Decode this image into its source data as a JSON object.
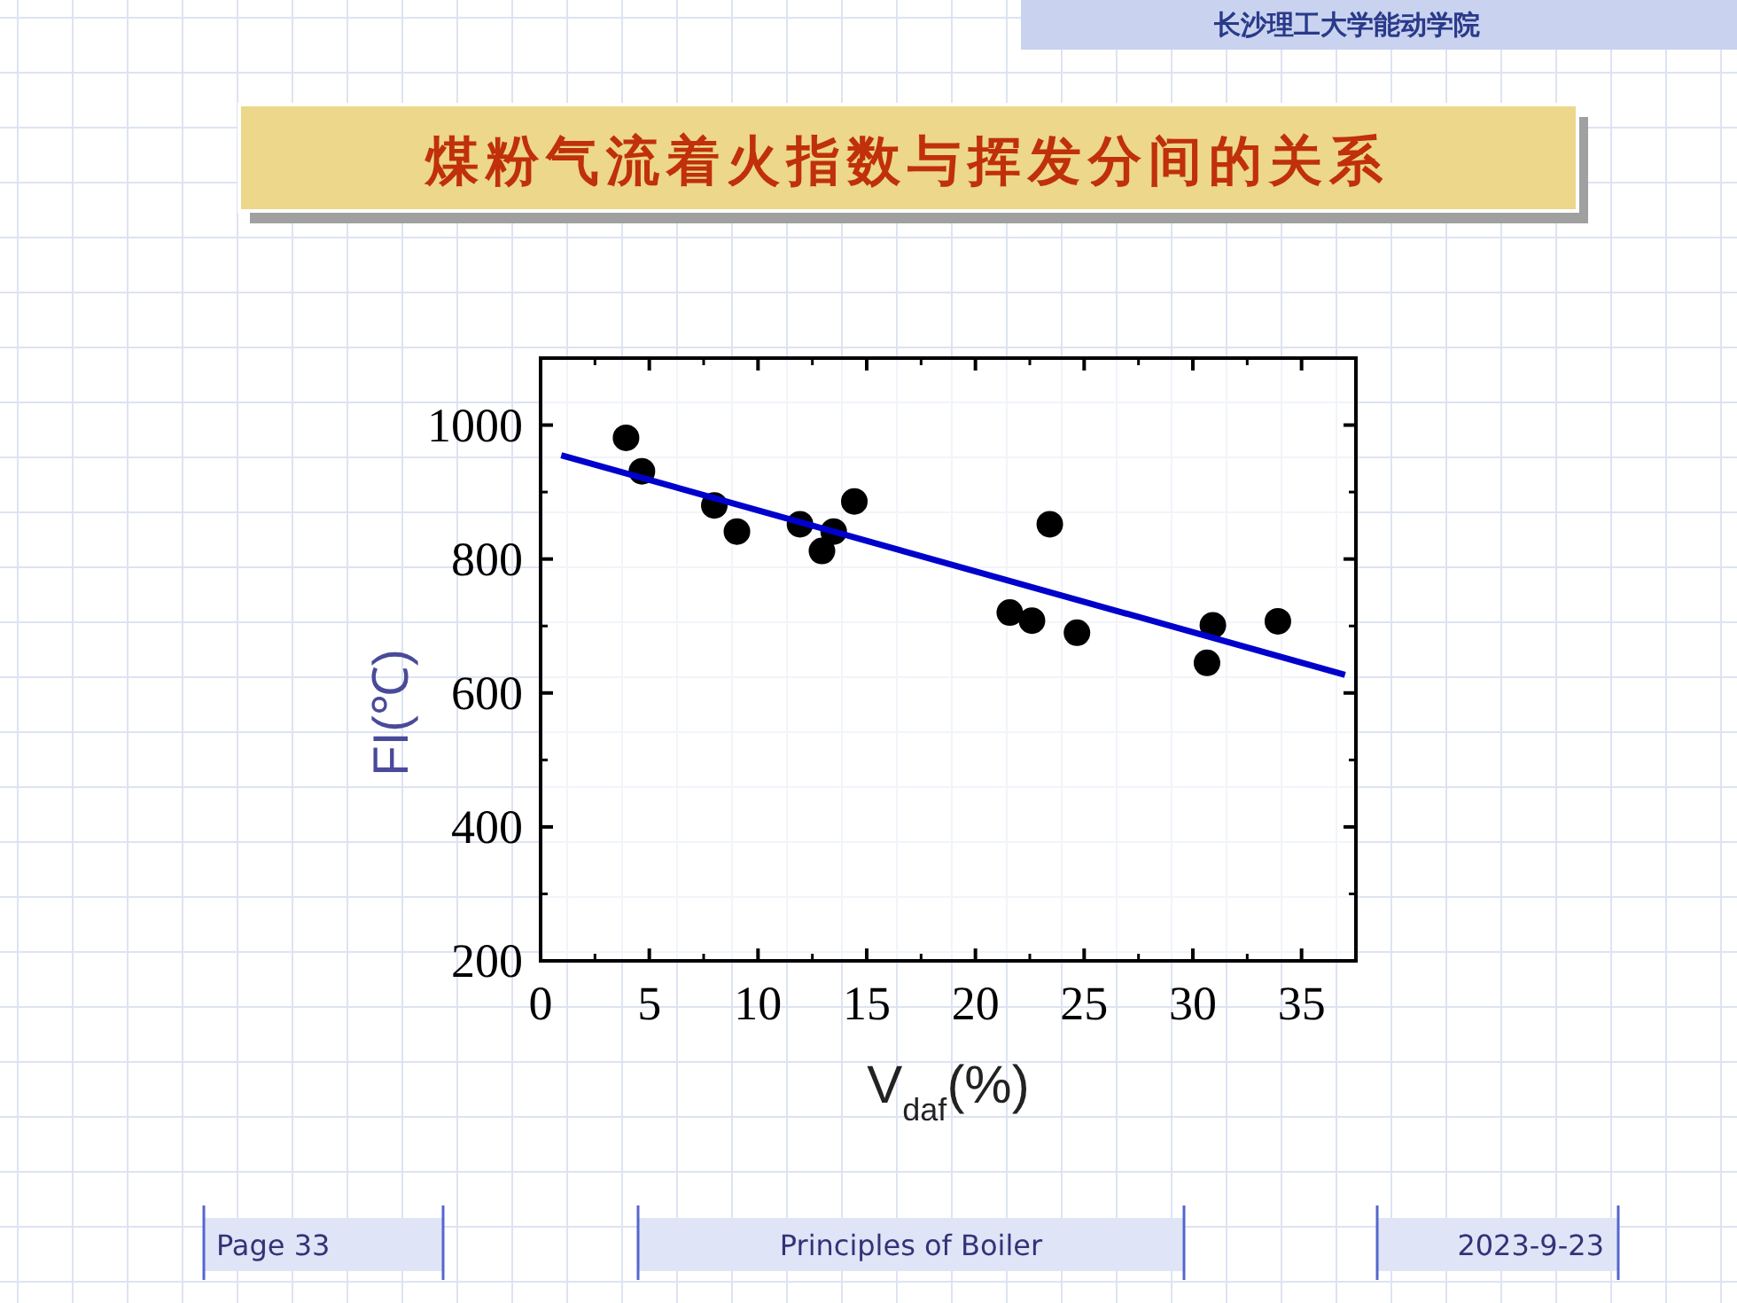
{
  "chart_data": {
    "type": "scatter",
    "title": "煤粉气流着火指数与挥发分间的关系",
    "xlabel": "V$_{daf}$(%)",
    "ylabel": "FI(℃)",
    "annotations": [
      "长沙理工大学能动学院",
      "Page 33",
      "Principles of Boiler",
      "2023-9-23"
    ],
    "series": [
      {
        "color": "#000000",
        "marker": "circle",
        "x": [
          3.93,
          4.66,
          7.99,
          9.03,
          11.93,
          12.94,
          13.48,
          14.43,
          23.42,
          21.58,
          22.6,
          24.67,
          30.92,
          30.65,
          33.91
        ],
        "values": [
          981,
          931,
          880,
          841,
          852,
          812,
          841,
          886,
          852,
          720,
          708,
          690,
          701,
          645,
          707
        ]
      },
      {
        "type": "line",
        "color": "#0000cc",
        "x": [
          0.95,
          37.0
        ],
        "values": [
          955,
          627
        ]
      }
    ],
    "line_style": "solid",
    "grid": false,
    "xlim": [
      0,
      37.5
    ],
    "ylim": [
      200,
      1100
    ],
    "xticks": [
      0,
      5,
      10,
      15,
      20,
      25,
      30,
      35
    ],
    "yticks": [
      200,
      400,
      600,
      800,
      1000
    ]
  }
}
